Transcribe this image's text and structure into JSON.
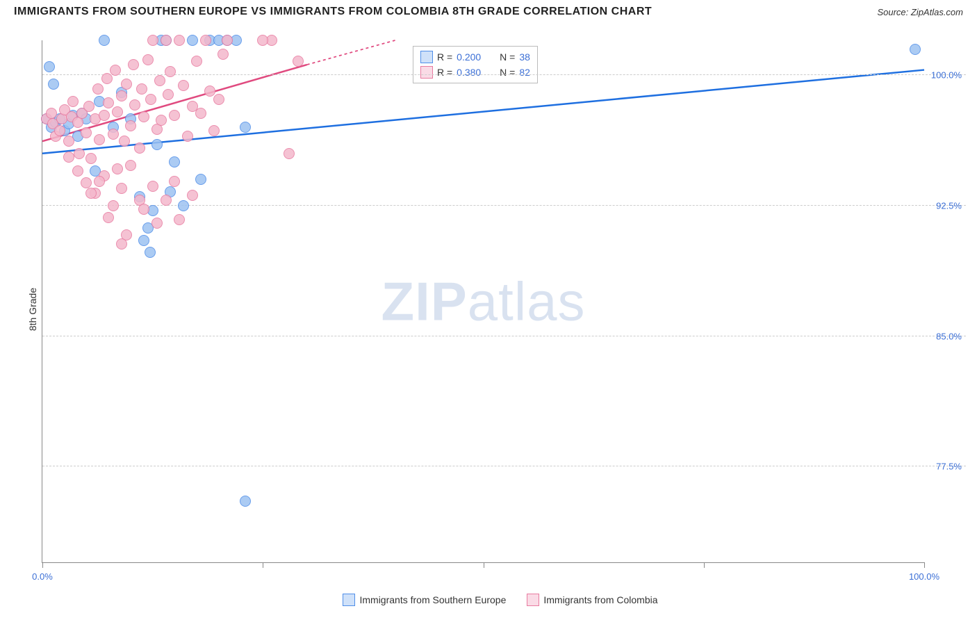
{
  "title": "IMMIGRANTS FROM SOUTHERN EUROPE VS IMMIGRANTS FROM COLOMBIA 8TH GRADE CORRELATION CHART",
  "source_label": "Source: ",
  "source_name": "ZipAtlas.com",
  "watermark_zip": "ZIP",
  "watermark_atlas": "atlas",
  "chart": {
    "type": "scatter",
    "xlim": [
      0,
      100
    ],
    "ylim": [
      72,
      102
    ],
    "xticks": [
      0,
      25,
      50,
      75,
      100
    ],
    "xtick_labels": {
      "0": "0.0%",
      "100": "100.0%"
    },
    "yticks": [
      77.5,
      85.0,
      92.5,
      100.0
    ],
    "ytick_labels": [
      "77.5%",
      "85.0%",
      "92.5%",
      "100.0%"
    ],
    "ylabel": "8th Grade",
    "background_color": "#ffffff",
    "grid_color": "#cccccc",
    "axis_color": "#888888",
    "tick_label_color": "#3b6fd6",
    "marker_radius": 8,
    "marker_border_width": 1.5,
    "marker_fill_opacity": 0.3,
    "series": [
      {
        "name": "Immigrants from Southern Europe",
        "color_border": "#4f8ee8",
        "color_fill": "#9dc2f2",
        "R": "0.200",
        "N": "38",
        "trend": {
          "x1": 0,
          "y1": 95.5,
          "x2": 100,
          "y2": 100.3,
          "stroke": "#1e6fe0",
          "width": 2.5,
          "dash_after_x": 100
        },
        "points": [
          [
            0.5,
            97.5
          ],
          [
            1,
            97
          ],
          [
            1.5,
            97.3
          ],
          [
            2,
            97.5
          ],
          [
            2.5,
            96.8
          ],
          [
            3,
            97.2
          ],
          [
            3.5,
            97.7
          ],
          [
            4,
            96.5
          ],
          [
            4.5,
            97.8
          ],
          [
            5,
            97.5
          ],
          [
            0.8,
            100.5
          ],
          [
            1.3,
            99.5
          ],
          [
            6,
            94.5
          ],
          [
            7,
            102
          ],
          [
            8,
            97
          ],
          [
            9,
            99
          ],
          [
            10,
            97.5
          ],
          [
            11,
            93
          ],
          [
            12,
            91.2
          ],
          [
            12.5,
            92.2
          ],
          [
            13,
            96
          ],
          [
            13.5,
            102
          ],
          [
            14,
            102
          ],
          [
            15,
            95
          ],
          [
            16,
            92.5
          ],
          [
            17,
            102
          ],
          [
            18,
            94
          ],
          [
            19,
            102
          ],
          [
            20,
            102
          ],
          [
            21,
            102
          ],
          [
            22,
            102
          ],
          [
            23,
            97
          ],
          [
            11.5,
            90.5
          ],
          [
            12.2,
            89.8
          ],
          [
            14.5,
            93.3
          ],
          [
            23,
            75.5
          ],
          [
            6.5,
            98.5
          ],
          [
            99,
            101.5
          ]
        ]
      },
      {
        "name": "Immigrants from Colombia",
        "color_border": "#e87ba0",
        "color_fill": "#f4b8cc",
        "R": "0.380",
        "N": "82",
        "trend": {
          "x1": 0,
          "y1": 96.2,
          "x2": 30,
          "y2": 100.6,
          "stroke": "#e04a7f",
          "width": 2.5,
          "dash_after_x": 30,
          "dash_x2": 40,
          "dash_y2": 102
        },
        "points": [
          [
            0.5,
            97.5
          ],
          [
            1,
            97.8
          ],
          [
            1.2,
            97.2
          ],
          [
            1.5,
            96.5
          ],
          [
            2,
            96.8
          ],
          [
            2.2,
            97.5
          ],
          [
            2.5,
            98
          ],
          [
            3,
            96.2
          ],
          [
            3.3,
            97.6
          ],
          [
            3.5,
            98.5
          ],
          [
            4,
            97.3
          ],
          [
            4.2,
            95.5
          ],
          [
            4.5,
            97.8
          ],
          [
            5,
            96.7
          ],
          [
            5.3,
            98.2
          ],
          [
            5.5,
            95.2
          ],
          [
            6,
            97.5
          ],
          [
            6.3,
            99.2
          ],
          [
            6.5,
            96.3
          ],
          [
            7,
            97.7
          ],
          [
            7.3,
            99.8
          ],
          [
            7.5,
            98.4
          ],
          [
            8,
            96.6
          ],
          [
            8.3,
            100.3
          ],
          [
            8.5,
            97.9
          ],
          [
            9,
            98.8
          ],
          [
            9.3,
            96.2
          ],
          [
            9.5,
            99.5
          ],
          [
            10,
            97.1
          ],
          [
            10.3,
            100.6
          ],
          [
            10.5,
            98.3
          ],
          [
            11,
            95.8
          ],
          [
            11.3,
            99.2
          ],
          [
            11.5,
            97.6
          ],
          [
            12,
            100.9
          ],
          [
            12.3,
            98.6
          ],
          [
            12.5,
            102
          ],
          [
            13,
            96.9
          ],
          [
            13.3,
            99.7
          ],
          [
            13.5,
            97.4
          ],
          [
            14,
            102
          ],
          [
            14.3,
            98.9
          ],
          [
            14.5,
            100.2
          ],
          [
            15,
            97.7
          ],
          [
            15.5,
            102
          ],
          [
            16,
            99.4
          ],
          [
            16.5,
            96.5
          ],
          [
            17,
            98.2
          ],
          [
            17.5,
            100.8
          ],
          [
            18,
            97.8
          ],
          [
            18.5,
            102
          ],
          [
            19,
            99.1
          ],
          [
            19.5,
            96.8
          ],
          [
            20,
            98.6
          ],
          [
            20.5,
            101.2
          ],
          [
            21,
            102
          ],
          [
            4,
            94.5
          ],
          [
            5,
            93.8
          ],
          [
            6,
            93.2
          ],
          [
            7,
            94.2
          ],
          [
            8,
            92.5
          ],
          [
            9,
            93.5
          ],
          [
            10,
            94.8
          ],
          [
            11,
            92.8
          ],
          [
            3,
            95.3
          ],
          [
            5.5,
            93.2
          ],
          [
            7.5,
            91.8
          ],
          [
            9.5,
            90.8
          ],
          [
            6.5,
            93.9
          ],
          [
            8.5,
            94.6
          ],
          [
            11.5,
            92.3
          ],
          [
            12.5,
            93.6
          ],
          [
            14,
            92.8
          ],
          [
            15.5,
            91.7
          ],
          [
            17,
            93.1
          ],
          [
            13,
            91.5
          ],
          [
            9,
            90.3
          ],
          [
            15,
            93.9
          ],
          [
            26,
            102
          ],
          [
            28,
            95.5
          ],
          [
            29,
            100.8
          ],
          [
            25,
            102
          ]
        ]
      }
    ],
    "legend_box": {
      "left_pct": 42,
      "top_pct": 1,
      "rows": [
        {
          "swatch_border": "#4f8ee8",
          "swatch_fill": "#cfe1f9",
          "r_label": "R =",
          "r_value": "0.200",
          "n_label": "N =",
          "n_value": "38",
          "value_color": "#3b6fd6"
        },
        {
          "swatch_border": "#e87ba0",
          "swatch_fill": "#fadbe6",
          "r_label": "R =",
          "r_value": "0.380",
          "n_label": "N =",
          "n_value": "82",
          "value_color": "#3b6fd6"
        }
      ]
    },
    "legend_bottom": [
      {
        "swatch_border": "#4f8ee8",
        "swatch_fill": "#cfe1f9",
        "label": "Immigrants from Southern Europe"
      },
      {
        "swatch_border": "#e87ba0",
        "swatch_fill": "#fadbe6",
        "label": "Immigrants from Colombia"
      }
    ]
  }
}
